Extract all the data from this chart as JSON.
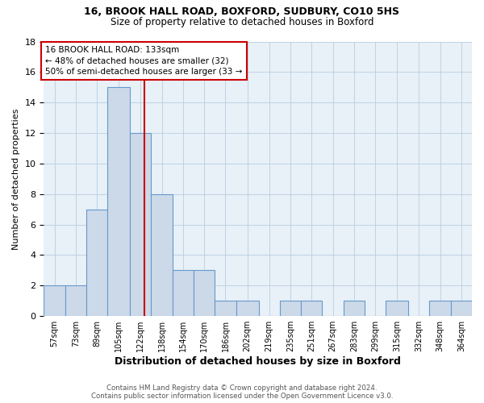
{
  "title1": "16, BROOK HALL ROAD, BOXFORD, SUDBURY, CO10 5HS",
  "title2": "Size of property relative to detached houses in Boxford",
  "xlabel": "Distribution of detached houses by size in Boxford",
  "ylabel": "Number of detached properties",
  "bin_edges": [
    57,
    73,
    89,
    105,
    122,
    138,
    154,
    170,
    186,
    202,
    219,
    235,
    251,
    267,
    283,
    299,
    315,
    332,
    348,
    364,
    380
  ],
  "counts": [
    2,
    2,
    7,
    15,
    12,
    8,
    3,
    3,
    1,
    1,
    0,
    1,
    1,
    0,
    1,
    0,
    1,
    0,
    1,
    1
  ],
  "bar_facecolor": "#ccd9e8",
  "bar_edgecolor": "#6699cc",
  "vline_x": 133,
  "vline_color": "#cc0000",
  "annotation_line1": "16 BROOK HALL ROAD: 133sqm",
  "annotation_line2": "← 48% of detached houses are smaller (32)",
  "annotation_line3": "50% of semi-detached houses are larger (33 →",
  "annotation_box_color": "#cc0000",
  "ylim": [
    0,
    18
  ],
  "yticks": [
    0,
    2,
    4,
    6,
    8,
    10,
    12,
    14,
    16,
    18
  ],
  "footnote": "Contains HM Land Registry data © Crown copyright and database right 2024.\nContains public sector information licensed under the Open Government Licence v3.0.",
  "grid_color": "#b8cfe0",
  "background_color": "#e8f0f8"
}
